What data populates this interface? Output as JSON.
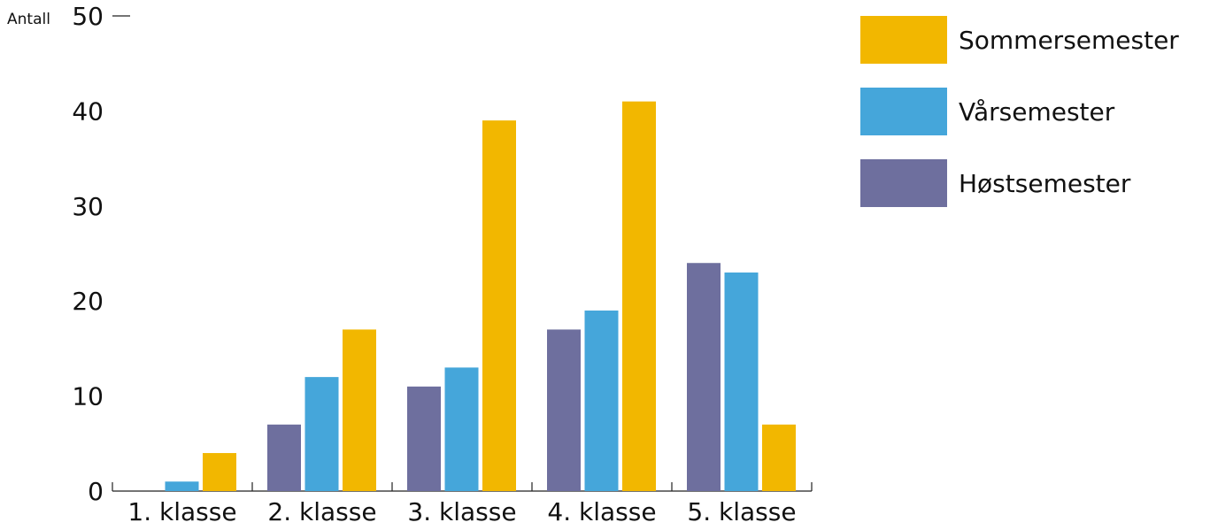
{
  "chart_data": {
    "type": "bar",
    "y_label": "Antall",
    "categories": [
      "1. klasse",
      "2. klasse",
      "3. klasse",
      "4. klasse",
      "5. klasse"
    ],
    "series": [
      {
        "name": "Sommersemester",
        "color": "#f2b700",
        "values": [
          4,
          17,
          39,
          41,
          7
        ]
      },
      {
        "name": "Vårsemester",
        "color": "#45a6da",
        "values": [
          1,
          12,
          13,
          19,
          23
        ]
      },
      {
        "name": "Høstsemester",
        "color": "#6e6f9e",
        "values": [
          0,
          7,
          11,
          17,
          24
        ]
      }
    ],
    "ylim": [
      0,
      50
    ],
    "yticks": [
      0,
      10,
      20,
      30,
      40,
      50
    ],
    "legend": "right"
  }
}
